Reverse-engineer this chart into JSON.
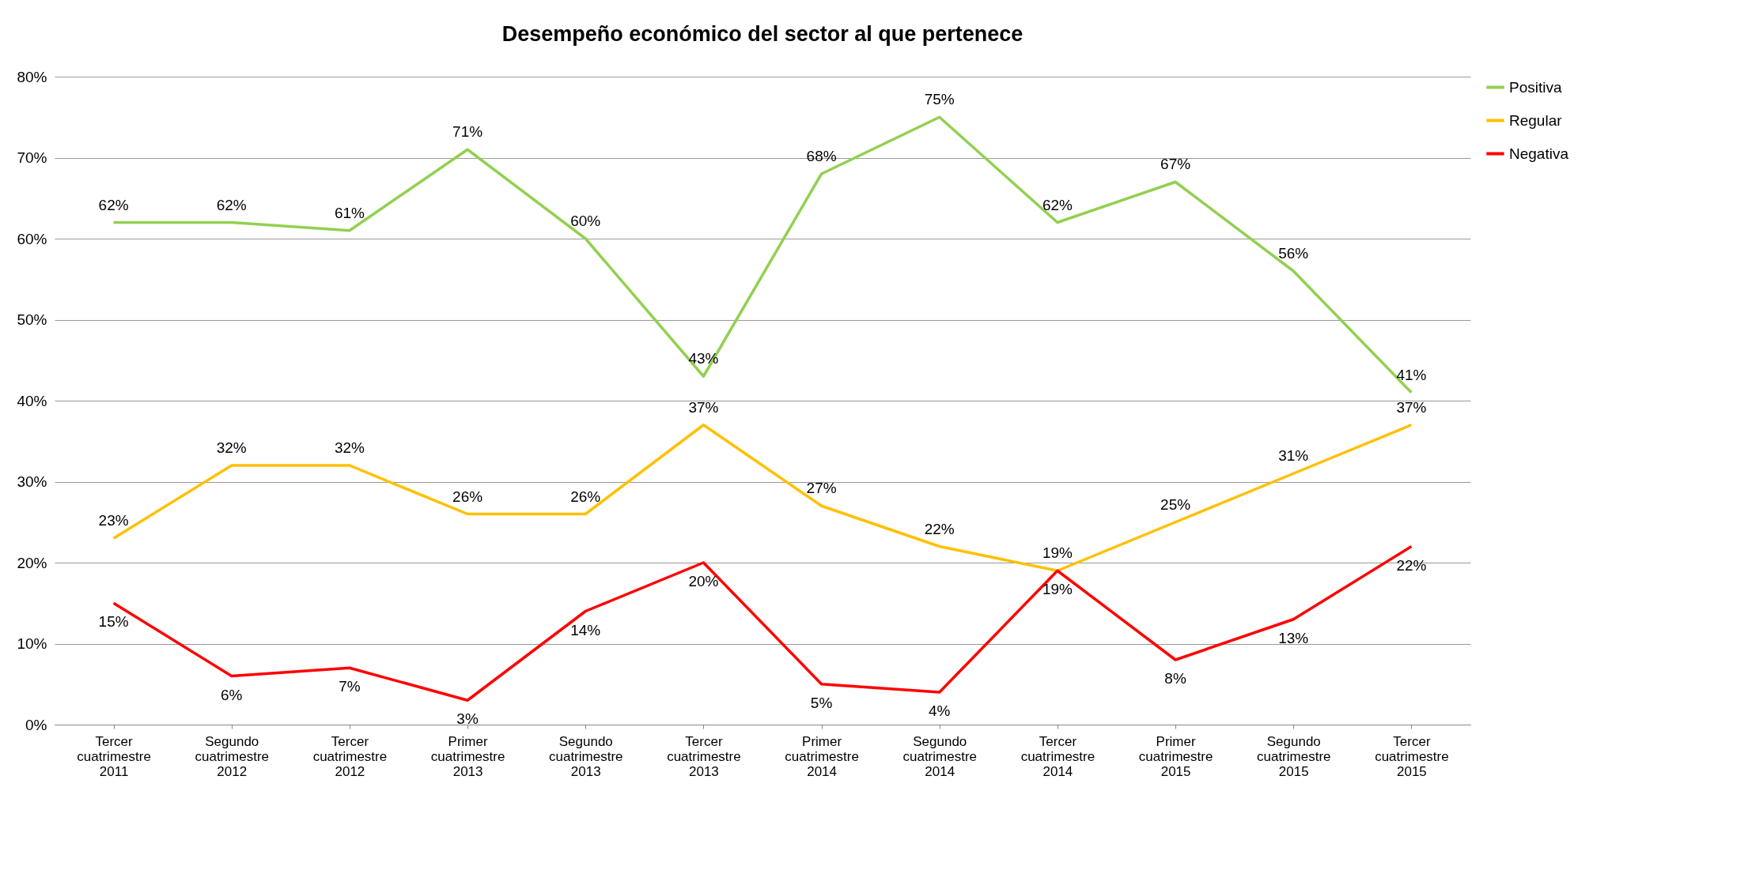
{
  "chart_data": {
    "type": "line",
    "title": "Desempeño económico del sector al que pertenece",
    "categories": [
      "Tercer cuatrimestre 2011",
      "Segundo cuatrimestre 2012",
      "Tercer cuatrimestre 2012",
      "Primer cuatrimestre 2013",
      "Segundo cuatrimestre 2013",
      "Tercer cuatrimestre 2013",
      "Primer cuatrimestre 2014",
      "Segundo cuatrimestre 2014",
      "Tercer cuatrimestre 2014",
      "Primer cuatrimestre 2015",
      "Segundo cuatrimestre 2015",
      "Tercer cuatrimestre 2015"
    ],
    "series": [
      {
        "name": "Positiva",
        "color": "#92d050",
        "values": [
          62,
          62,
          61,
          71,
          60,
          43,
          68,
          75,
          62,
          67,
          56,
          41
        ],
        "value_labels": [
          "62%",
          "62%",
          "61%",
          "71%",
          "60%",
          "43%",
          "68%",
          "75%",
          "62%",
          "67%",
          "56%",
          "41%"
        ]
      },
      {
        "name": "Regular",
        "color": "#ffc000",
        "values": [
          23,
          32,
          32,
          26,
          26,
          37,
          27,
          22,
          19,
          25,
          31,
          37
        ],
        "value_labels": [
          "23%",
          "32%",
          "32%",
          "26%",
          "26%",
          "37%",
          "27%",
          "22%",
          "19%",
          "25%",
          "31%",
          "37%"
        ]
      },
      {
        "name": "Negativa",
        "color": "#ff0000",
        "values": [
          15,
          6,
          7,
          3,
          14,
          20,
          5,
          4,
          19,
          8,
          13,
          22
        ],
        "value_labels": [
          "15%",
          "6%",
          "7%",
          "3%",
          "14%",
          "20%",
          "5%",
          "4%",
          "19%",
          "8%",
          "13%",
          "22%"
        ]
      }
    ],
    "ylim": [
      0,
      80
    ],
    "yticks": [
      {
        "value": 0,
        "label": "0%"
      },
      {
        "value": 10,
        "label": "10%"
      },
      {
        "value": 20,
        "label": "20%"
      },
      {
        "value": 30,
        "label": "30%"
      },
      {
        "value": 40,
        "label": "40%"
      },
      {
        "value": 50,
        "label": "50%"
      },
      {
        "value": 60,
        "label": "60%"
      },
      {
        "value": 70,
        "label": "70%"
      },
      {
        "value": 80,
        "label": "80%"
      }
    ],
    "grid": "y",
    "legend": "right",
    "marker": "none",
    "line_style": "solid"
  }
}
